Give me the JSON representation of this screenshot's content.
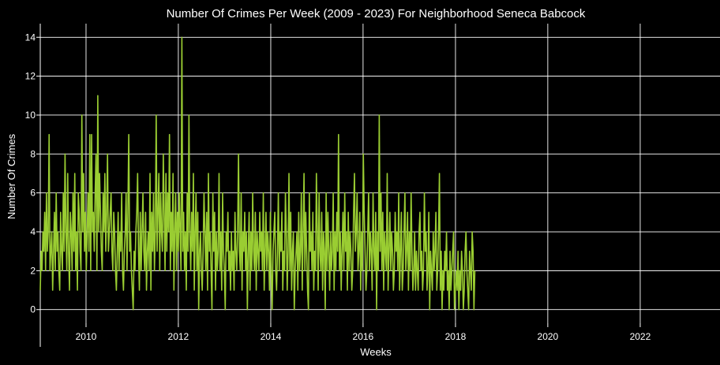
{
  "chart_data": {
    "type": "line",
    "title": "Number Of Crimes Per Week (2009 - 2023) For Neighborhood Seneca Babcock",
    "xlabel": "Weeks",
    "ylabel": "Number Of Crimes",
    "xlim": [
      "2009-01-04",
      "2023-09-24"
    ],
    "ylim": [
      -0.7,
      14.7
    ],
    "x_ticks": [
      "2010",
      "2012",
      "2014",
      "2016",
      "2018",
      "2020",
      "2022"
    ],
    "y_ticks": [
      0,
      2,
      4,
      6,
      8,
      10,
      12,
      14
    ],
    "grid": true,
    "legend": "none",
    "series": [
      {
        "color": "#9acd32",
        "start_date": "2009-01-04",
        "frequency": "weekly",
        "values": [
          1,
          3,
          2,
          4,
          3,
          5,
          2,
          6,
          3,
          4,
          9,
          2,
          3,
          4,
          1,
          3,
          5,
          2,
          6,
          3,
          4,
          2,
          1,
          5,
          3,
          2,
          6,
          3,
          8,
          4,
          2,
          7,
          3,
          1,
          5,
          4,
          2,
          6,
          3,
          7,
          2,
          4,
          1,
          6,
          5,
          3,
          2,
          10,
          4,
          7,
          3,
          5,
          2,
          4,
          6,
          3,
          9,
          2,
          9,
          4,
          5,
          3,
          6,
          8,
          2,
          11,
          4,
          7,
          5,
          3,
          2,
          6,
          4,
          7,
          3,
          5,
          8,
          3,
          4,
          5,
          6,
          3,
          2,
          5,
          4,
          2,
          1,
          3,
          5,
          2,
          4,
          3,
          6,
          2,
          1,
          3,
          4,
          6,
          2,
          5,
          9,
          3,
          4,
          2,
          1,
          0,
          3,
          2,
          4,
          5,
          7,
          3,
          1,
          5,
          2,
          4,
          6,
          3,
          2,
          5,
          1,
          3,
          4,
          2,
          7,
          1,
          5,
          3,
          6,
          2,
          4,
          10,
          3,
          5,
          7,
          2,
          6,
          4,
          3,
          8,
          5,
          2,
          7,
          3,
          6,
          4,
          9,
          2,
          5,
          3,
          7,
          1,
          4,
          6,
          2,
          5,
          3,
          6,
          4,
          2,
          14,
          3,
          5,
          2,
          4,
          1,
          6,
          3,
          10,
          4,
          2,
          5,
          3,
          7,
          1,
          4,
          6,
          2,
          5,
          0,
          3,
          4,
          2,
          1,
          3,
          6,
          4,
          2,
          5,
          1,
          7,
          3,
          4,
          2,
          0,
          6,
          3,
          5,
          1,
          4,
          2,
          3,
          7,
          2,
          4,
          1,
          6,
          3,
          2,
          0,
          4,
          3,
          5,
          2,
          3,
          1,
          4,
          2,
          3,
          1,
          5,
          3,
          2,
          4,
          8,
          3,
          2,
          6,
          1,
          4,
          3,
          5,
          2,
          4,
          0,
          3,
          5,
          1,
          4,
          2,
          6,
          3,
          2,
          5,
          1,
          4,
          3,
          2,
          5,
          3,
          4,
          2,
          6,
          1,
          3,
          5,
          2,
          4,
          3,
          1,
          5,
          2,
          0,
          3,
          4,
          5,
          2,
          1,
          3,
          6,
          2,
          4,
          3,
          5,
          1,
          3,
          2,
          6,
          4,
          1,
          3,
          7,
          2,
          5,
          1,
          3,
          4,
          0,
          2,
          3,
          4,
          1,
          5,
          2,
          3,
          6,
          1,
          4,
          7,
          2,
          5,
          3,
          1,
          0,
          6,
          3,
          4,
          2,
          5,
          1,
          3,
          2,
          7,
          4,
          1,
          6,
          3,
          2,
          5,
          1,
          4,
          3,
          0,
          6,
          2,
          5,
          3,
          1,
          4,
          2,
          3,
          6,
          1,
          4,
          2,
          5,
          3,
          9,
          2,
          4,
          1,
          3,
          5,
          2,
          6,
          3,
          4,
          1,
          5,
          2,
          4,
          3,
          1,
          2,
          5,
          7,
          3,
          4,
          6,
          2,
          3,
          5,
          1,
          4,
          2,
          8,
          5,
          3,
          1,
          2,
          4,
          6,
          2,
          4,
          3,
          1,
          6,
          3,
          2,
          5,
          0,
          4,
          2,
          10,
          3,
          6,
          2,
          5,
          1,
          4,
          3,
          2,
          7,
          1,
          3,
          5,
          2,
          4,
          3,
          1,
          2,
          5,
          3,
          4,
          2,
          6,
          1,
          3,
          5,
          1,
          2,
          4,
          6,
          2,
          3,
          5,
          1,
          4,
          2,
          6,
          3,
          1,
          2,
          4,
          1,
          3,
          2,
          1,
          4,
          5,
          2,
          3,
          1,
          2,
          6,
          3,
          4,
          1,
          2,
          5,
          0,
          3,
          2,
          1,
          4,
          2,
          3,
          5,
          1,
          2,
          4,
          7,
          1,
          3,
          0,
          2,
          1,
          3,
          2,
          4,
          1,
          2,
          0,
          3,
          1,
          2,
          3,
          4,
          0,
          1,
          2,
          1,
          3,
          0,
          2,
          1,
          3,
          2,
          0,
          1,
          3,
          4,
          2,
          1,
          0,
          3,
          2,
          1,
          4,
          3,
          0,
          2
        ],
        "note_values": "weekly crime counts read off the plot"
      }
    ]
  }
}
